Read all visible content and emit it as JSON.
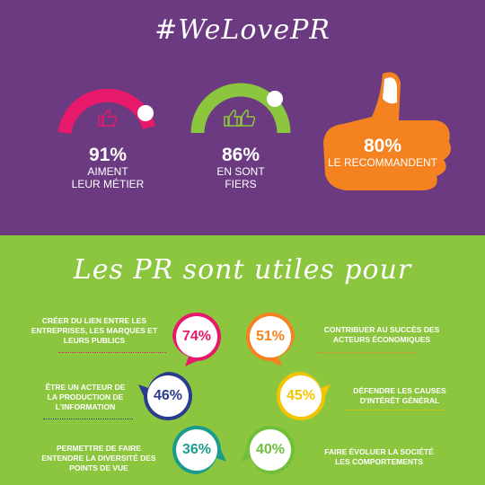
{
  "header": {
    "title": "#WeLovePR"
  },
  "stats": [
    {
      "value": "91%",
      "caption_line1": "AIMENT",
      "caption_line2": "LEUR MÉTIER",
      "color": "#e6196a"
    },
    {
      "value": "86%",
      "caption_line1": "EN SONT",
      "caption_line2": "FIERS",
      "color": "#8cc63f"
    },
    {
      "value": "80%",
      "caption_line1": "LE RECOMMANDENT",
      "color": "#f58220"
    }
  ],
  "section": {
    "title": "Les PR sont utiles pour"
  },
  "items": [
    {
      "value": "74%",
      "text": "CRÉER DU LIEN ENTRE LES ENTREPRISES, LES MARQUES ET LEURS PUBLICS",
      "lines": [
        "CRÉER DU LIEN ENTRE LES",
        "ENTREPRISES, LES MARQUES ET",
        "LEURS PUBLICS"
      ],
      "color": "#e6196a"
    },
    {
      "value": "51%",
      "lines": [
        "CONTRIBUER AU SUCCÈS DES",
        "ACTEURS ÉCONOMIQUES"
      ],
      "color": "#f58220"
    },
    {
      "value": "46%",
      "lines": [
        "ÊTRE UN ACTEUR DE",
        "LA PRODUCTION DE",
        "L'INFORMATION"
      ],
      "color": "#2b3c8f"
    },
    {
      "value": "45%",
      "lines": [
        "DÉFENDRE LES CAUSES",
        "D'INTÉRÊT GÉNÉRAL"
      ],
      "color": "#f2c500"
    },
    {
      "value": "36%",
      "lines": [
        "PERMETTRE DE FAIRE",
        "ENTENDRE LA DIVERSITÉ DES",
        "POINTS DE VUE"
      ],
      "color": "#1a9c8c"
    },
    {
      "value": "40%",
      "lines": [
        "FAIRE ÉVOLUER LA SOCIÉTÉ",
        "LES COMPORTEMENTS"
      ],
      "color": "#6fbf3a"
    }
  ]
}
